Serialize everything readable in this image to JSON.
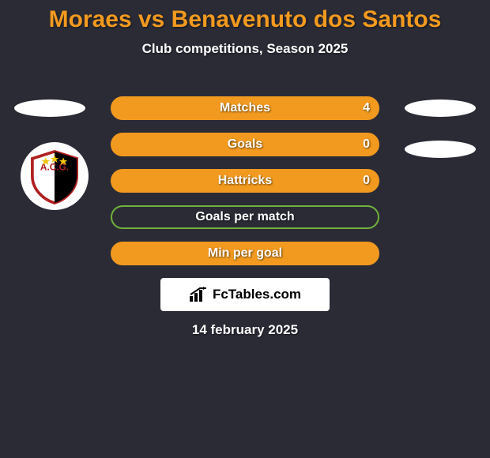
{
  "title": "Moraes vs Benavenuto dos Santos",
  "subtitle": "Club competitions, Season 2025",
  "date": "14 february 2025",
  "branding_text": "FcTables.com",
  "colors": {
    "background": "#2b2b36",
    "accent_orange": "#f29a1f",
    "accent_green": "#6fb23a",
    "white": "#ffffff"
  },
  "bars": [
    {
      "label": "Matches",
      "value": "4",
      "border": "#f29a1f",
      "fill": "#f29a1f"
    },
    {
      "label": "Goals",
      "value": "0",
      "border": "#f29a1f",
      "fill": "#f29a1f"
    },
    {
      "label": "Hattricks",
      "value": "0",
      "border": "#f29a1f",
      "fill": "#f29a1f"
    },
    {
      "label": "Goals per match",
      "value": "",
      "border": "#6fb23a",
      "fill": "transparent"
    },
    {
      "label": "Min per goal",
      "value": "",
      "border": "#f29a1f",
      "fill": "#f29a1f"
    }
  ]
}
